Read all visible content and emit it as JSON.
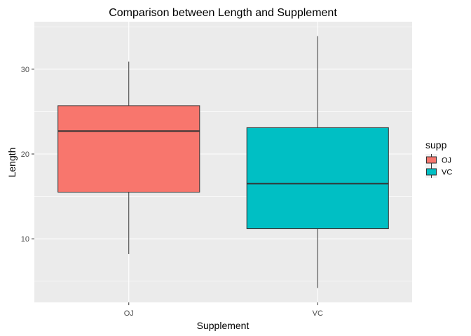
{
  "chart_data": {
    "type": "box",
    "title": "Comparison between Length and Supplement",
    "xlabel": "Supplement",
    "ylabel": "Length",
    "ylim": [
      2.5,
      35.6
    ],
    "yticks": [
      10,
      20,
      30
    ],
    "categories": [
      "OJ",
      "VC"
    ],
    "series": [
      {
        "name": "OJ",
        "color": "#f8766d",
        "min": 8.2,
        "q1": 15.5,
        "median": 22.7,
        "q3": 25.7,
        "max": 30.9
      },
      {
        "name": "VC",
        "color": "#00bfc4",
        "min": 4.2,
        "q1": 11.2,
        "median": 16.5,
        "q3": 23.1,
        "max": 33.9
      }
    ],
    "legend": {
      "title": "supp",
      "position": "right",
      "entries": [
        "OJ",
        "VC"
      ]
    },
    "grid": true,
    "panel_background": "#ebebeb",
    "grid_color": "#ffffff"
  }
}
